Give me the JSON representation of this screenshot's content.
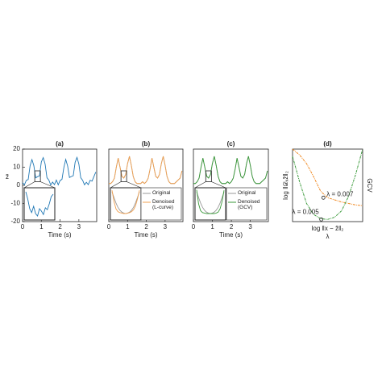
{
  "chart_data": [
    {
      "type": "line",
      "title": "(a)",
      "xlabel": "Time (s)",
      "ylabel": "z̃",
      "x": [
        0,
        0.1,
        0.2,
        0.3,
        0.4,
        0.5,
        0.6,
        0.7,
        0.8,
        0.9,
        1,
        1.1,
        1.2,
        1.3,
        1.4,
        1.5,
        1.6,
        1.7,
        1.8,
        1.9,
        2,
        2.1,
        2.2,
        2.3,
        2.4,
        2.5,
        2.6,
        2.7,
        2.8,
        2.9,
        3,
        3.1,
        3.2,
        3.3,
        3.4,
        3.5,
        3.6,
        3.7,
        3.8,
        3.9
      ],
      "xlim": [
        0,
        3.95
      ],
      "ylim": [
        -20,
        20
      ],
      "xticks": [
        0,
        1,
        2,
        3
      ],
      "yticks": [
        -20,
        -10,
        0,
        10,
        20
      ],
      "series": [
        {
          "color": "#1f77b4",
          "values": [
            1.5,
            0.3,
            2.8,
            3.2,
            10.8,
            14.2,
            10.9,
            4.1,
            4.8,
            5.2,
            12.9,
            15.3,
            11.8,
            4.2,
            2.9,
            0.2,
            1.8,
            0.4,
            2.9,
            0.3,
            2.7,
            3.3,
            9.8,
            14.3,
            10.7,
            4.3,
            4.9,
            5.3,
            12.7,
            15.4,
            11.7,
            4.2,
            2.8,
            0.3,
            1.7,
            0.4,
            2.8,
            2.3,
            4.8,
            7.3
          ]
        }
      ],
      "zoom_xlim": [
        0.65,
        0.95
      ],
      "zoom_ylim": [
        2,
        8
      ],
      "inset_series": [
        {
          "color": "#1f77b4",
          "values": [
            7.5,
            6,
            4,
            3.2,
            4.5,
            3,
            2.5,
            4,
            3.5,
            2.8,
            4.2,
            3.8,
            5,
            6.5,
            7
          ]
        }
      ]
    },
    {
      "type": "line",
      "title": "(b)",
      "xlabel": "Time (s)",
      "x": [
        0,
        0.1,
        0.2,
        0.3,
        0.4,
        0.5,
        0.6,
        0.7,
        0.8,
        0.9,
        1,
        1.1,
        1.2,
        1.3,
        1.4,
        1.5,
        1.6,
        1.7,
        1.8,
        1.9,
        2,
        2.1,
        2.2,
        2.3,
        2.4,
        2.5,
        2.6,
        2.7,
        2.8,
        2.9,
        3,
        3.1,
        3.2,
        3.3,
        3.4,
        3.5,
        3.6,
        3.7,
        3.8,
        3.9
      ],
      "xlim": [
        0,
        3.95
      ],
      "ylim": [
        -20,
        20
      ],
      "xticks": [
        0,
        1,
        2,
        3
      ],
      "legend": "lower right",
      "series": [
        {
          "name": "Original",
          "color": "#9a9a9a",
          "values": [
            1,
            1,
            2,
            4,
            10,
            15,
            10,
            5,
            4,
            6,
            12,
            16,
            11,
            5,
            2,
            1,
            1,
            1,
            2,
            1,
            2,
            4,
            9,
            15,
            10,
            5,
            4,
            6,
            12,
            16,
            11,
            5,
            2,
            1,
            1,
            1,
            2,
            3,
            4,
            8
          ]
        },
        {
          "name": "Denoised (L-curve)",
          "color": "#f0a050",
          "values": [
            1,
            1,
            2,
            4,
            10,
            15,
            10,
            5,
            4,
            6,
            12,
            16,
            11,
            5,
            2,
            1,
            1,
            1,
            2,
            1,
            2,
            4,
            9,
            15,
            10,
            5,
            4,
            6,
            12,
            16,
            11,
            5,
            2,
            1,
            1,
            1,
            2,
            3,
            4,
            8
          ]
        }
      ],
      "zoom_xlim": [
        0.65,
        0.95
      ],
      "zoom_ylim": [
        2,
        8
      ],
      "inset_series": [
        {
          "color": "#9a9a9a",
          "values": [
            7.5,
            6.3,
            5.2,
            4.3,
            3.7,
            3.3,
            3.1,
            3,
            3.1,
            3.3,
            3.7,
            4.3,
            5.2,
            6.3,
            7.5
          ]
        },
        {
          "color": "#f0a050",
          "values": [
            7.8,
            5.5,
            4,
            3.4,
            3.2,
            3.1,
            3,
            3,
            3.1,
            3.2,
            3.4,
            3.8,
            4.6,
            6,
            7.8
          ]
        }
      ]
    },
    {
      "type": "line",
      "title": "(c)",
      "xlabel": "Time (s)",
      "x": [
        0,
        0.1,
        0.2,
        0.3,
        0.4,
        0.5,
        0.6,
        0.7,
        0.8,
        0.9,
        1,
        1.1,
        1.2,
        1.3,
        1.4,
        1.5,
        1.6,
        1.7,
        1.8,
        1.9,
        2,
        2.1,
        2.2,
        2.3,
        2.4,
        2.5,
        2.6,
        2.7,
        2.8,
        2.9,
        3,
        3.1,
        3.2,
        3.3,
        3.4,
        3.5,
        3.6,
        3.7,
        3.8,
        3.9
      ],
      "xlim": [
        0,
        3.95
      ],
      "ylim": [
        -20,
        20
      ],
      "xticks": [
        0,
        1,
        2,
        3
      ],
      "legend": "lower right",
      "series": [
        {
          "name": "Original",
          "color": "#9a9a9a",
          "values": [
            1,
            1,
            2,
            4,
            10,
            15,
            10,
            5,
            4,
            6,
            12,
            16,
            11,
            5,
            2,
            1,
            1,
            1,
            2,
            1,
            2,
            4,
            9,
            15,
            10,
            5,
            4,
            6,
            12,
            16,
            11,
            5,
            2,
            1,
            1,
            1,
            2,
            3,
            4,
            8
          ]
        },
        {
          "name": "Denoised (GCV)",
          "color": "#3a9a3a",
          "values": [
            1,
            1,
            2,
            4,
            10,
            15,
            10,
            5,
            4,
            6,
            12,
            16,
            11,
            5,
            2,
            1,
            1,
            1,
            2,
            1,
            2,
            4,
            9,
            15,
            10,
            5,
            4,
            6,
            12,
            16,
            11,
            5,
            2,
            1,
            1,
            1,
            2,
            3,
            4,
            8
          ]
        }
      ],
      "zoom_xlim": [
        0.65,
        0.95
      ],
      "zoom_ylim": [
        2,
        8
      ],
      "inset_series": [
        {
          "color": "#9a9a9a",
          "values": [
            7.5,
            6.3,
            5.2,
            4.3,
            3.7,
            3.3,
            3.1,
            3,
            3.1,
            3.3,
            3.7,
            4.3,
            5.2,
            6.3,
            7.5
          ]
        },
        {
          "color": "#3a9a3a",
          "values": [
            7.9,
            5,
            3.6,
            3.2,
            3.1,
            3,
            3,
            3,
            3,
            3,
            3.1,
            3.3,
            4,
            5.5,
            7.8
          ]
        }
      ]
    },
    {
      "type": "lcurve",
      "title": "(d)",
      "xlabel": "log ‖x − ẑ‖₂",
      "xlabel2": "λ",
      "ylabel": "log ‖𝒟ₓẑ‖₂",
      "y2label": "GCV",
      "x": [
        0,
        0.1,
        0.2,
        0.3,
        0.4,
        0.5,
        0.6,
        0.7,
        0.8,
        0.9,
        1
      ],
      "xlim": [
        0,
        1
      ],
      "ylim": [
        0,
        1
      ],
      "y2lim": [
        0,
        1
      ],
      "series": [
        {
          "color": "#f08a24",
          "values": [
            1,
            0.92,
            0.8,
            0.62,
            0.42,
            0.33,
            0.3,
            0.27,
            0.25,
            0.23,
            0.22
          ]
        },
        {
          "color": "#3a9a3a",
          "axis": "y2",
          "values": [
            0.9,
            0.55,
            0.25,
            0.1,
            0.04,
            0.03,
            0.06,
            0.15,
            0.35,
            0.65,
            1
          ]
        }
      ],
      "annotations": [
        {
          "text": "λ = 0.007",
          "x": 0.44,
          "y": 0.33,
          "color": "#f08a24"
        },
        {
          "text": "λ = 0.005",
          "x": 0.41,
          "y": 0.03,
          "color": "#3a9a3a"
        }
      ]
    }
  ]
}
